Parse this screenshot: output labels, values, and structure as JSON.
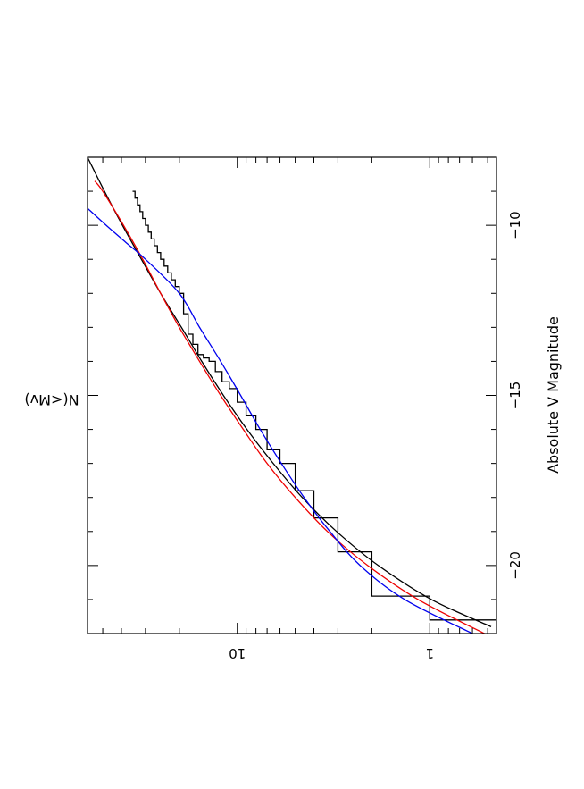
{
  "chart_data": {
    "type": "line",
    "orientation": "rotated-90",
    "title": "",
    "xlabel": "Absolute V Magnitude",
    "ylabel": "N(<Mv)",
    "x_axis": {
      "scale": "linear",
      "reversed": true,
      "range": [
        -22,
        -8
      ]
    },
    "y_axis": {
      "scale": "log",
      "range": [
        0.45,
        60
      ]
    },
    "x_major_ticks": [
      -20,
      -15,
      -10
    ],
    "x_tick_labels": [
      "−20",
      "−15",
      "−10"
    ],
    "y_major_ticks": [
      1,
      10
    ],
    "y_tick_labels": [
      "1",
      "10"
    ],
    "grid": false,
    "series": [
      {
        "style": "step",
        "color": "#000000",
        "x": [
          -21.6,
          -20.9,
          -19.6,
          -18.6,
          -17.8,
          -17.0,
          -16.6,
          -16.0,
          -15.6,
          -15.2,
          -14.8,
          -14.6,
          -14.3,
          -14.0,
          -13.9,
          -13.8,
          -13.5,
          -13.2,
          -12.6,
          -12.0,
          -11.8,
          -11.6,
          -11.4,
          -11.2,
          -11.0,
          -10.8,
          -10.6,
          -10.4,
          -10.2,
          -10.0,
          -9.8,
          -9.6,
          -9.4,
          -9.2,
          -9.0
        ],
        "y": [
          1,
          2,
          3,
          4,
          5,
          6,
          7,
          8,
          9,
          10,
          11,
          12,
          13,
          14,
          15,
          16,
          17,
          18,
          19,
          20,
          21,
          22,
          23,
          24,
          25,
          26,
          27,
          28,
          29,
          30,
          31,
          32,
          33,
          34,
          35
        ]
      },
      {
        "style": "line",
        "color": "#000000",
        "x": [
          -21.8,
          -21.0,
          -20.0,
          -19.0,
          -18.0,
          -17.0,
          -16.0,
          -15.0,
          -14.0,
          -13.0,
          -12.0,
          -11.0,
          -10.0,
          -9.0,
          -8.0
        ],
        "y": [
          0.48,
          0.98,
          1.85,
          3.05,
          4.6,
          6.5,
          8.9,
          11.8,
          15.3,
          19.5,
          25.0,
          31.5,
          39.5,
          49.0,
          60.0
        ]
      },
      {
        "style": "line",
        "color": "#ee0000",
        "x": [
          -22.0,
          -21.0,
          -20.0,
          -19.0,
          -18.0,
          -17.0,
          -16.0,
          -15.0,
          -14.0,
          -13.0,
          -12.0,
          -11.0,
          -10.0,
          -9.0,
          -8.7
        ],
        "y": [
          0.52,
          1.15,
          2.1,
          3.4,
          5.0,
          7.0,
          9.3,
          12.2,
          15.7,
          20.0,
          25.0,
          31.0,
          39.0,
          50.0,
          55.0
        ]
      },
      {
        "style": "line",
        "color": "#0000ee",
        "x": [
          -22.0,
          -21.0,
          -20.0,
          -19.0,
          -18.0,
          -17.0,
          -16.0,
          -15.0,
          -14.0,
          -13.0,
          -12.0,
          -11.0,
          -10.5,
          -10.0,
          -9.5
        ],
        "y": [
          0.6,
          1.35,
          2.3,
          3.3,
          4.5,
          5.9,
          7.6,
          9.6,
          12.2,
          15.7,
          20.0,
          30.0,
          38.0,
          48.0,
          60.0
        ]
      }
    ]
  }
}
